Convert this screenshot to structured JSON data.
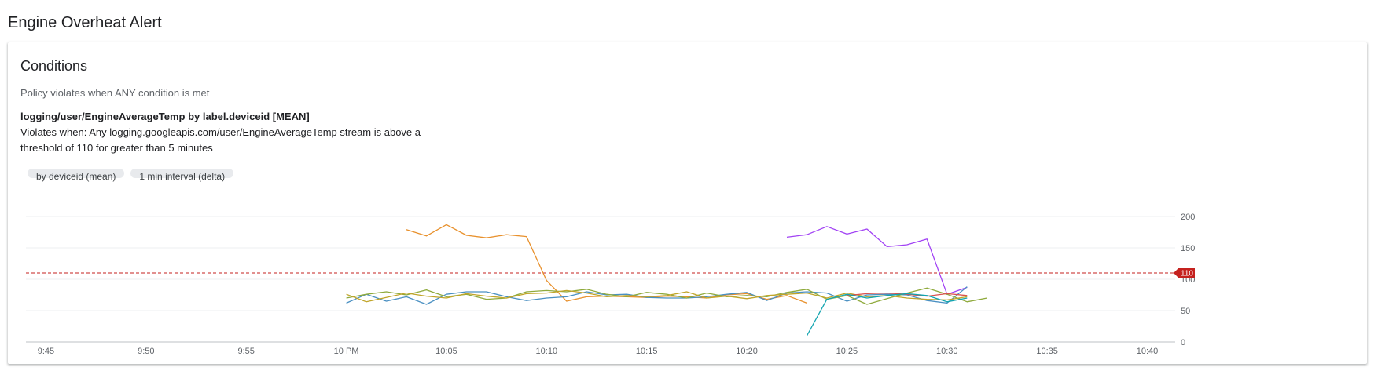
{
  "page": {
    "title": "Engine Overheat Alert"
  },
  "conditions": {
    "title": "Conditions",
    "policy_text": "Policy violates when ANY condition is met",
    "condition_name": "logging/user/EngineAverageTemp by label.deviceid [MEAN]",
    "condition_desc": "Violates when: Any logging.googleapis.com/user/EngineAverageTemp stream is above a threshold of 110 for greater than 5 minutes",
    "chips": [
      "by deviceid (mean)",
      "1 min interval (delta)"
    ]
  },
  "chart_data": {
    "type": "line",
    "x_labels": [
      "9:45",
      "9:50",
      "9:55",
      "10 PM",
      "10:05",
      "10:10",
      "10:15",
      "10:20",
      "10:25",
      "10:30",
      "10:35",
      "10:40"
    ],
    "x_range_minutes": [
      -16,
      41
    ],
    "y_range": [
      0,
      200
    ],
    "y_ticks": [
      0,
      50,
      100,
      150,
      200
    ],
    "threshold": {
      "value": 110,
      "label": "110",
      "color": "#c5221f"
    },
    "grid": true,
    "series": [
      {
        "color": "#e8912d",
        "points": [
          [
            3,
            179
          ],
          [
            4,
            169
          ],
          [
            5,
            187
          ],
          [
            6,
            170
          ],
          [
            7,
            166
          ],
          [
            8,
            171
          ],
          [
            9,
            168
          ],
          [
            10,
            98
          ],
          [
            11,
            65
          ],
          [
            12,
            72
          ],
          [
            13,
            73
          ],
          [
            14,
            72
          ],
          [
            15,
            71
          ],
          [
            16,
            73
          ],
          [
            17,
            72
          ],
          [
            18,
            70
          ],
          [
            19,
            75
          ],
          [
            20,
            77
          ],
          [
            21,
            68
          ],
          [
            22,
            74
          ],
          [
            23,
            62
          ]
        ]
      },
      {
        "color": "#a142f4",
        "points": [
          [
            22,
            167
          ],
          [
            23,
            171
          ],
          [
            24,
            184
          ],
          [
            25,
            172
          ],
          [
            26,
            180
          ],
          [
            27,
            152
          ],
          [
            28,
            155
          ],
          [
            29,
            164
          ],
          [
            30,
            76
          ],
          [
            31,
            87
          ]
        ]
      },
      {
        "color": "#4a90c2",
        "points": [
          [
            0,
            62
          ],
          [
            1,
            76
          ],
          [
            2,
            65
          ],
          [
            3,
            72
          ],
          [
            4,
            60
          ],
          [
            5,
            76
          ],
          [
            6,
            80
          ],
          [
            7,
            80
          ],
          [
            8,
            72
          ],
          [
            9,
            66
          ],
          [
            10,
            70
          ],
          [
            11,
            72
          ],
          [
            12,
            80
          ],
          [
            13,
            75
          ],
          [
            14,
            76
          ],
          [
            15,
            71
          ],
          [
            16,
            70
          ],
          [
            17,
            70
          ],
          [
            18,
            72
          ],
          [
            19,
            76
          ],
          [
            20,
            79
          ],
          [
            21,
            66
          ],
          [
            22,
            78
          ],
          [
            23,
            80
          ],
          [
            24,
            78
          ],
          [
            25,
            65
          ],
          [
            26,
            75
          ],
          [
            27,
            76
          ],
          [
            28,
            75
          ],
          [
            29,
            66
          ],
          [
            30,
            62
          ],
          [
            31,
            88
          ]
        ]
      },
      {
        "color": "#8faa3c",
        "points": [
          [
            0,
            70
          ],
          [
            1,
            76
          ],
          [
            2,
            80
          ],
          [
            3,
            75
          ],
          [
            4,
            83
          ],
          [
            5,
            72
          ],
          [
            6,
            76
          ],
          [
            7,
            68
          ],
          [
            8,
            70
          ],
          [
            9,
            80
          ],
          [
            10,
            82
          ],
          [
            11,
            80
          ],
          [
            12,
            84
          ],
          [
            13,
            76
          ],
          [
            14,
            72
          ],
          [
            15,
            79
          ],
          [
            16,
            76
          ],
          [
            17,
            70
          ],
          [
            18,
            78
          ],
          [
            19,
            72
          ],
          [
            20,
            74
          ],
          [
            21,
            72
          ],
          [
            22,
            79
          ],
          [
            23,
            84
          ],
          [
            24,
            68
          ],
          [
            25,
            74
          ],
          [
            26,
            60
          ],
          [
            27,
            69
          ],
          [
            28,
            78
          ],
          [
            29,
            86
          ],
          [
            30,
            76
          ],
          [
            31,
            64
          ],
          [
            32,
            70
          ]
        ]
      },
      {
        "color": "#c1a52a",
        "points": [
          [
            0,
            76
          ],
          [
            1,
            64
          ],
          [
            2,
            71
          ],
          [
            3,
            78
          ],
          [
            4,
            73
          ],
          [
            5,
            70
          ],
          [
            6,
            77
          ],
          [
            7,
            73
          ],
          [
            8,
            70
          ],
          [
            9,
            77
          ],
          [
            10,
            78
          ],
          [
            11,
            82
          ],
          [
            12,
            78
          ],
          [
            13,
            72
          ],
          [
            14,
            74
          ],
          [
            15,
            72
          ],
          [
            16,
            74
          ],
          [
            17,
            80
          ],
          [
            18,
            70
          ],
          [
            19,
            73
          ],
          [
            20,
            69
          ],
          [
            21,
            74
          ],
          [
            22,
            76
          ],
          [
            23,
            78
          ],
          [
            24,
            70
          ],
          [
            25,
            78
          ],
          [
            26,
            72
          ],
          [
            27,
            74
          ],
          [
            28,
            70
          ],
          [
            29,
            68
          ],
          [
            30,
            67
          ],
          [
            31,
            72
          ]
        ]
      },
      {
        "color": "#d9534f",
        "points": [
          [
            25,
            74
          ],
          [
            26,
            77
          ],
          [
            27,
            78
          ],
          [
            28,
            76
          ],
          [
            29,
            73
          ],
          [
            30,
            77
          ],
          [
            31,
            74
          ]
        ]
      },
      {
        "color": "#12a4af",
        "points": [
          [
            23,
            10
          ],
          [
            24,
            68
          ],
          [
            25,
            76
          ],
          [
            26,
            70
          ],
          [
            27,
            74
          ],
          [
            28,
            77
          ],
          [
            29,
            74
          ],
          [
            30,
            64
          ],
          [
            31,
            70
          ]
        ]
      }
    ]
  }
}
